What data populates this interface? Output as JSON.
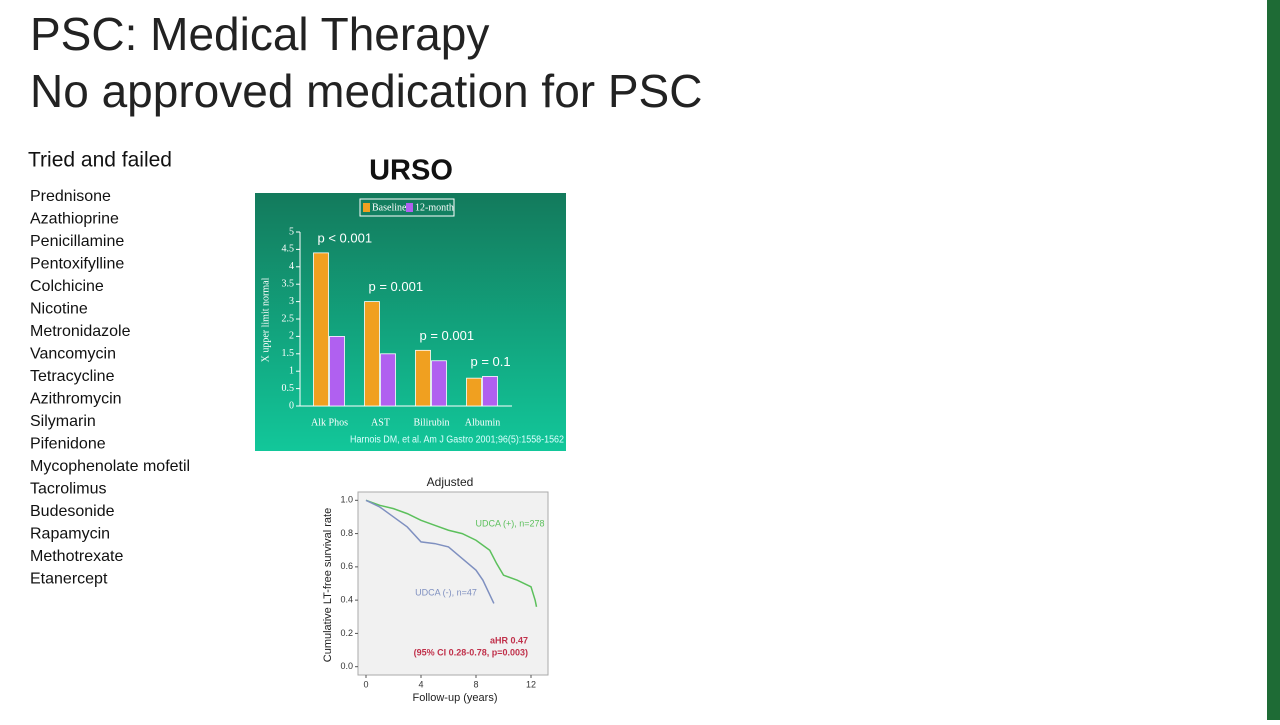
{
  "header": {
    "title_lines": [
      "PSC: Medical Therapy",
      "No approved medication for PSC"
    ]
  },
  "sidebar": {
    "heading": "Tried and failed",
    "items": [
      "Prednisone",
      "Azathioprine",
      "Penicillamine",
      "Pentoxifylline",
      "Colchicine",
      "Nicotine",
      "Metronidazole",
      "Vancomycin",
      "Tetracycline",
      "Azithromycin",
      "Silymarin",
      "Pifenidone",
      "Mycophenolate mofetil",
      "Tacrolimus",
      "Budesonide",
      "Rapamycin",
      "Methotrexate",
      "Etanercept"
    ]
  },
  "section_heading": "URSO",
  "charts": [
    {
      "type": "bar",
      "y_label": "X upper limit normal",
      "categories": [
        "Alk Phos",
        "AST",
        "Bilirubin",
        "Albumin"
      ],
      "series": [
        {
          "name": "Baseline",
          "color": "#f0a020",
          "values": [
            4.4,
            3.0,
            1.6,
            0.8
          ]
        },
        {
          "name": "12-month",
          "color": "#b060f0",
          "values": [
            2.0,
            1.5,
            1.3,
            0.85
          ]
        }
      ],
      "annotations": [
        "p < 0.001",
        "p = 0.001",
        "p = 0.001",
        "p = 0.1"
      ],
      "ylim": [
        0,
        5
      ],
      "yticks": [
        0,
        0.5,
        1,
        1.5,
        2,
        2.5,
        3,
        3.5,
        4,
        4.5,
        5
      ],
      "citation": "Harnois DM, et al.  Am J Gastro 2001;96(5):1558-1562"
    },
    {
      "type": "line",
      "title": "Adjusted",
      "x_label": "Follow-up (years)",
      "y_label": "Cumulative LT-free survival rate",
      "xlim": [
        0,
        13
      ],
      "xticks": [
        0,
        4,
        8,
        12
      ],
      "ylim": [
        -0.05,
        1.05
      ],
      "yticks": [
        {
          "value": 0,
          "label": "0.0"
        },
        0.2,
        0.4,
        0.6,
        0.8,
        {
          "value": 1,
          "label": "1.0"
        }
      ],
      "series": [
        {
          "name": "UDCA (+), n=278",
          "color": "#5cc05c",
          "x": [
            0,
            1,
            2,
            3,
            4,
            5,
            6,
            7,
            8,
            9,
            9.5,
            10,
            11,
            12,
            12.3,
            12.4
          ],
          "values": [
            1.0,
            0.97,
            0.95,
            0.92,
            0.88,
            0.85,
            0.82,
            0.8,
            0.76,
            0.7,
            0.62,
            0.55,
            0.52,
            0.48,
            0.4,
            0.36
          ]
        },
        {
          "name": "UDCA (-), n=47",
          "color": "#7f90c0",
          "x": [
            0,
            1,
            2,
            3,
            4,
            5,
            6,
            7,
            8,
            8.5,
            9.3
          ],
          "values": [
            1.0,
            0.96,
            0.9,
            0.84,
            0.75,
            0.74,
            0.72,
            0.65,
            0.58,
            0.52,
            0.38
          ]
        }
      ],
      "annotations": [
        "aHR 0.47",
        "(95% CI 0.28-0.78, p=0.003)"
      ]
    }
  ]
}
